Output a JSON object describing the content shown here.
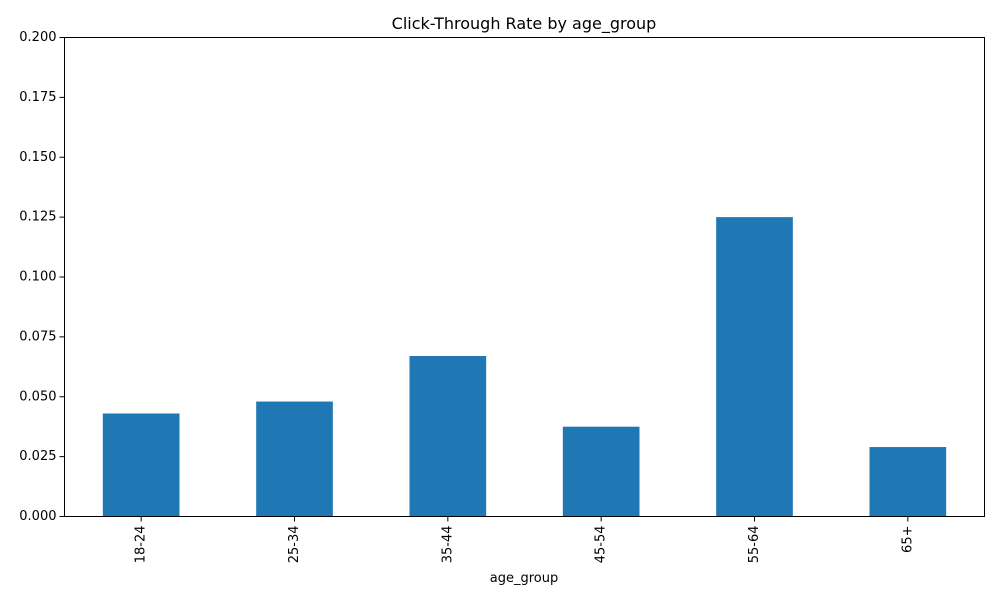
{
  "chart_data": {
    "type": "bar",
    "title": "Click-Through Rate by age_group",
    "xlabel": "age_group",
    "ylabel": "",
    "categories": [
      "18-24",
      "25-34",
      "35-44",
      "45-54",
      "55-64",
      "65+"
    ],
    "values": [
      0.043,
      0.048,
      0.067,
      0.0375,
      0.125,
      0.029
    ],
    "ylim": [
      0,
      0.2
    ],
    "yticks": [
      "0.000",
      "0.025",
      "0.050",
      "0.075",
      "0.100",
      "0.125",
      "0.150",
      "0.175",
      "0.200"
    ],
    "grid": false,
    "legend": "none",
    "bar_color": "#1f77b4"
  }
}
